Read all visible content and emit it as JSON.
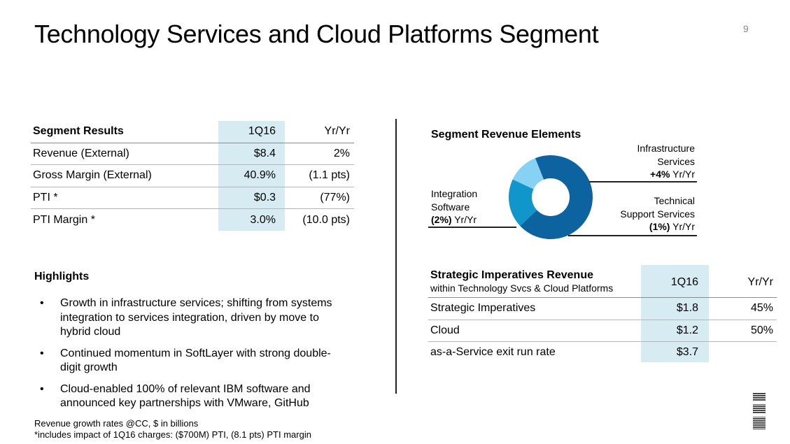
{
  "slide": {
    "title": "Technology Services and Cloud Platforms Segment",
    "page_number": "9"
  },
  "segment_results": {
    "headers": [
      "Segment Results",
      "1Q16",
      "Yr/Yr"
    ],
    "rows": [
      [
        "Revenue (External)",
        "$8.4",
        "2%"
      ],
      [
        "Gross Margin (External)",
        "40.9%",
        "(1.1 pts)"
      ],
      [
        "PTI  *",
        "$0.3",
        "(77%)"
      ],
      [
        "PTI Margin *",
        "3.0%",
        "(10.0 pts)"
      ]
    ]
  },
  "highlights": {
    "title": "Highlights",
    "bullet": "•",
    "items": [
      "Growth in infrastructure services; shifting from systems integration to services integration, driven by move to hybrid cloud",
      "Continued momentum in SoftLayer with strong double-digit growth",
      "Cloud-enabled 100% of relevant IBM software and announced key partnerships with VMware, GitHub"
    ]
  },
  "footnote": {
    "line1": "Revenue growth rates @CC, $ in billions",
    "line2": "*includes impact of 1Q16 charges: ($700M) PTI, (8.1 pts) PTI margin"
  },
  "revenue_elements": {
    "title": "Segment Revenue Elements",
    "infrastructure": {
      "name_line1": "Infrastructure",
      "name_line2": "Services",
      "growth": "+4%",
      "suffix": " Yr/Yr"
    },
    "technical": {
      "name_line1": "Technical",
      "name_line2": "Support Services",
      "growth": "(1%)",
      "suffix": " Yr/Yr"
    },
    "integration": {
      "name_line1": "Integration",
      "name_line2": "Software",
      "growth": "(2%)",
      "suffix": " Yr/Yr"
    }
  },
  "chart_data": {
    "type": "pie",
    "donut": true,
    "title": "Segment Revenue Elements",
    "categories": [
      "Infrastructure Services",
      "Technical Support Services",
      "Integration Software"
    ],
    "values": [
      69,
      19,
      12
    ],
    "colors": [
      "#0d62a0",
      "#1196cc",
      "#87d1f5"
    ]
  },
  "strategic_imperatives": {
    "header_title": "Strategic Imperatives Revenue",
    "header_subtitle": "within Technology Svcs & Cloud Platforms",
    "col2": "1Q16",
    "col3": "Yr/Yr",
    "rows": [
      [
        "Strategic Imperatives",
        "$1.8",
        "45%"
      ],
      [
        "Cloud",
        "$1.2",
        "50%"
      ],
      [
        "as-a-Service exit run rate",
        "$3.7",
        ""
      ]
    ]
  },
  "logo": {
    "text": "IBM"
  }
}
